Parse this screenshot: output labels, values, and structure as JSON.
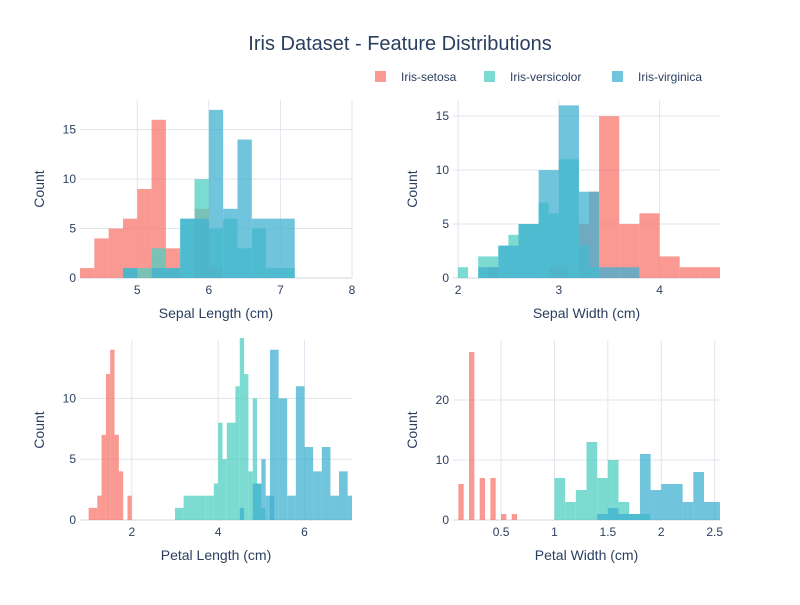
{
  "chart_data": {
    "type": "histogram",
    "title": "Iris Dataset - Feature Distributions",
    "legend": {
      "placement": "top-right",
      "orientation": "horizontal",
      "entries": [
        {
          "name": "Iris-setosa",
          "color": "#F8766D"
        },
        {
          "name": "Iris-versicolor",
          "color": "#4FCFC2"
        },
        {
          "name": "Iris-virginica",
          "color": "#40B0D0"
        }
      ]
    },
    "bar_opacity": 0.75,
    "grid": true,
    "panels": [
      {
        "xlabel": "Sepal Length (cm)",
        "ylabel": "Count",
        "xlim": [
          4.2,
          8
        ],
        "ylim": [
          0,
          18
        ],
        "xticks": [
          5,
          6,
          7,
          8
        ],
        "xtick_labels": [
          "5",
          "6",
          "7",
          "8"
        ],
        "yticks": [
          0,
          5,
          10,
          15
        ],
        "ytick_labels": [
          "0",
          "5",
          "10",
          "15"
        ],
        "series": [
          {
            "name": "Iris-setosa",
            "bins": [
              [
                4.2,
                4.4,
                1
              ],
              [
                4.4,
                4.6,
                4
              ],
              [
                4.6,
                4.8,
                5
              ],
              [
                4.8,
                5.0,
                6
              ],
              [
                5.0,
                5.2,
                9
              ],
              [
                5.2,
                5.4,
                16
              ],
              [
                5.4,
                5.6,
                3
              ],
              [
                5.6,
                5.8,
                0
              ],
              [
                5.8,
                6.0,
                7
              ],
              [
                6.0,
                6.2,
                1
              ]
            ]
          },
          {
            "name": "Iris-versicolor",
            "bins": [
              [
                4.8,
                5.0,
                1
              ],
              [
                5.0,
                5.2,
                1
              ],
              [
                5.2,
                5.4,
                3
              ],
              [
                5.4,
                5.6,
                1
              ],
              [
                5.6,
                5.8,
                6
              ],
              [
                5.8,
                6.0,
                10
              ],
              [
                6.0,
                6.2,
                5
              ],
              [
                6.2,
                6.4,
                6
              ],
              [
                6.4,
                6.6,
                3
              ],
              [
                6.6,
                6.8,
                5
              ],
              [
                6.8,
                7.0,
                1
              ],
              [
                7.0,
                7.2,
                1
              ]
            ]
          },
          {
            "name": "Iris-virginica",
            "bins": [
              [
                4.8,
                5.0,
                1
              ],
              [
                5.0,
                5.2,
                0
              ],
              [
                5.2,
                5.4,
                1
              ],
              [
                5.4,
                5.6,
                1
              ],
              [
                5.6,
                5.8,
                6
              ],
              [
                5.8,
                6.0,
                6
              ],
              [
                6.0,
                6.2,
                17
              ],
              [
                6.2,
                6.4,
                7
              ],
              [
                6.4,
                6.6,
                14
              ],
              [
                6.6,
                6.8,
                6
              ],
              [
                6.8,
                7.0,
                6
              ],
              [
                7.0,
                7.2,
                6
              ]
            ]
          }
        ]
      },
      {
        "xlabel": "Sepal Width (cm)",
        "ylabel": "Count",
        "xlim": [
          1.95,
          4.6
        ],
        "ylim": [
          0,
          16.5
        ],
        "xticks": [
          2,
          3,
          4
        ],
        "xtick_labels": [
          "2",
          "3",
          "4"
        ],
        "yticks": [
          0,
          5,
          10,
          15
        ],
        "ytick_labels": [
          "0",
          "5",
          "10",
          "15"
        ],
        "series": [
          {
            "name": "Iris-setosa",
            "bins": [
              [
                2.3,
                2.4,
                1
              ],
              [
                2.9,
                3.0,
                1
              ],
              [
                3.0,
                3.1,
                1
              ],
              [
                3.2,
                3.3,
                5
              ],
              [
                3.3,
                3.4,
                8
              ],
              [
                3.4,
                3.6,
                15
              ],
              [
                3.6,
                3.8,
                5
              ],
              [
                3.8,
                4.0,
                6
              ],
              [
                4.0,
                4.2,
                2
              ],
              [
                4.2,
                4.4,
                1
              ],
              [
                4.4,
                4.6,
                1
              ]
            ]
          },
          {
            "name": "Iris-versicolor",
            "bins": [
              [
                2.0,
                2.1,
                1
              ],
              [
                2.2,
                2.4,
                2
              ],
              [
                2.4,
                2.5,
                3
              ],
              [
                2.5,
                2.6,
                4
              ],
              [
                2.6,
                2.7,
                5
              ],
              [
                2.7,
                2.8,
                5
              ],
              [
                2.8,
                2.9,
                7
              ],
              [
                2.9,
                3.0,
                6
              ],
              [
                3.0,
                3.2,
                11
              ],
              [
                3.2,
                3.3,
                3
              ],
              [
                3.3,
                3.4,
                1
              ]
            ]
          },
          {
            "name": "Iris-virginica",
            "bins": [
              [
                2.2,
                2.4,
                1
              ],
              [
                2.4,
                2.6,
                3
              ],
              [
                2.6,
                2.8,
                5
              ],
              [
                2.8,
                3.0,
                10
              ],
              [
                3.0,
                3.2,
                16
              ],
              [
                3.2,
                3.4,
                8
              ],
              [
                3.4,
                3.6,
                1
              ],
              [
                3.6,
                3.8,
                1
              ]
            ]
          }
        ]
      },
      {
        "xlabel": "Petal Length (cm)",
        "ylabel": "Count",
        "xlim": [
          0.8,
          7.1
        ],
        "ylim": [
          0,
          14.8
        ],
        "xticks": [
          2,
          4,
          6
        ],
        "xtick_labels": [
          "2",
          "4",
          "6"
        ],
        "yticks": [
          0,
          5,
          10
        ],
        "ytick_labels": [
          "0",
          "5",
          "10"
        ],
        "series": [
          {
            "name": "Iris-setosa",
            "bins": [
              [
                1.0,
                1.1,
                1
              ],
              [
                1.1,
                1.2,
                1
              ],
              [
                1.2,
                1.3,
                2
              ],
              [
                1.3,
                1.4,
                7
              ],
              [
                1.4,
                1.5,
                12
              ],
              [
                1.5,
                1.6,
                14
              ],
              [
                1.6,
                1.7,
                7
              ],
              [
                1.7,
                1.8,
                4
              ],
              [
                1.9,
                2.0,
                2
              ]
            ]
          },
          {
            "name": "Iris-versicolor",
            "bins": [
              [
                3.0,
                3.2,
                1
              ],
              [
                3.2,
                3.5,
                2
              ],
              [
                3.5,
                3.7,
                2
              ],
              [
                3.7,
                3.9,
                2
              ],
              [
                3.9,
                4.0,
                3
              ],
              [
                4.0,
                4.1,
                8
              ],
              [
                4.1,
                4.2,
                5
              ],
              [
                4.2,
                4.4,
                8
              ],
              [
                4.4,
                4.5,
                11
              ],
              [
                4.5,
                4.6,
                15
              ],
              [
                4.6,
                4.7,
                12
              ],
              [
                4.7,
                4.8,
                4
              ],
              [
                4.8,
                4.9,
                10
              ],
              [
                4.9,
                5.0,
                3
              ],
              [
                5.0,
                5.1,
                1
              ]
            ]
          },
          {
            "name": "Iris-virginica",
            "bins": [
              [
                4.5,
                4.6,
                1
              ],
              [
                4.8,
                5.0,
                3
              ],
              [
                5.0,
                5.1,
                5
              ],
              [
                5.1,
                5.3,
                2
              ],
              [
                5.2,
                5.4,
                14
              ],
              [
                5.4,
                5.6,
                10
              ],
              [
                5.6,
                5.8,
                2
              ],
              [
                5.8,
                6.0,
                11
              ],
              [
                6.0,
                6.2,
                6
              ],
              [
                6.2,
                6.4,
                4
              ],
              [
                6.4,
                6.6,
                6
              ],
              [
                6.6,
                6.8,
                2
              ],
              [
                6.8,
                7.0,
                4
              ],
              [
                7.0,
                7.1,
                2
              ]
            ]
          }
        ]
      },
      {
        "xlabel": "Petal Width (cm)",
        "ylabel": "Count",
        "xlim": [
          0.05,
          2.55
        ],
        "ylim": [
          0,
          30
        ],
        "xticks": [
          0.5,
          1,
          1.5,
          2,
          2.5
        ],
        "xtick_labels": [
          "0.5",
          "1",
          "1.5",
          "2",
          "2.5"
        ],
        "yticks": [
          0,
          10,
          20
        ],
        "ytick_labels": [
          "0",
          "10",
          "20"
        ],
        "series": [
          {
            "name": "Iris-setosa",
            "bins": [
              [
                0.1,
                0.15,
                6
              ],
              [
                0.15,
                0.2,
                0
              ],
              [
                0.2,
                0.25,
                28
              ],
              [
                0.25,
                0.3,
                0
              ],
              [
                0.3,
                0.35,
                7
              ],
              [
                0.35,
                0.4,
                0
              ],
              [
                0.4,
                0.45,
                7
              ],
              [
                0.45,
                0.5,
                0
              ],
              [
                0.5,
                0.55,
                1
              ],
              [
                0.55,
                0.6,
                0
              ],
              [
                0.6,
                0.65,
                1
              ]
            ]
          },
          {
            "name": "Iris-versicolor",
            "bins": [
              [
                1.0,
                1.1,
                7
              ],
              [
                1.1,
                1.2,
                3
              ],
              [
                1.2,
                1.3,
                5
              ],
              [
                1.3,
                1.4,
                13
              ],
              [
                1.4,
                1.5,
                7
              ],
              [
                1.5,
                1.6,
                10
              ],
              [
                1.6,
                1.7,
                3
              ],
              [
                1.7,
                1.8,
                1
              ],
              [
                1.8,
                1.9,
                1
              ]
            ]
          },
          {
            "name": "Iris-virginica",
            "bins": [
              [
                1.4,
                1.5,
                1
              ],
              [
                1.5,
                1.6,
                2
              ],
              [
                1.6,
                1.7,
                1
              ],
              [
                1.7,
                1.8,
                1
              ],
              [
                1.8,
                1.9,
                11
              ],
              [
                1.9,
                2.0,
                5
              ],
              [
                2.0,
                2.2,
                6
              ],
              [
                2.2,
                2.3,
                3
              ],
              [
                2.3,
                2.4,
                8
              ],
              [
                2.4,
                2.55,
                3
              ]
            ]
          }
        ]
      }
    ]
  }
}
